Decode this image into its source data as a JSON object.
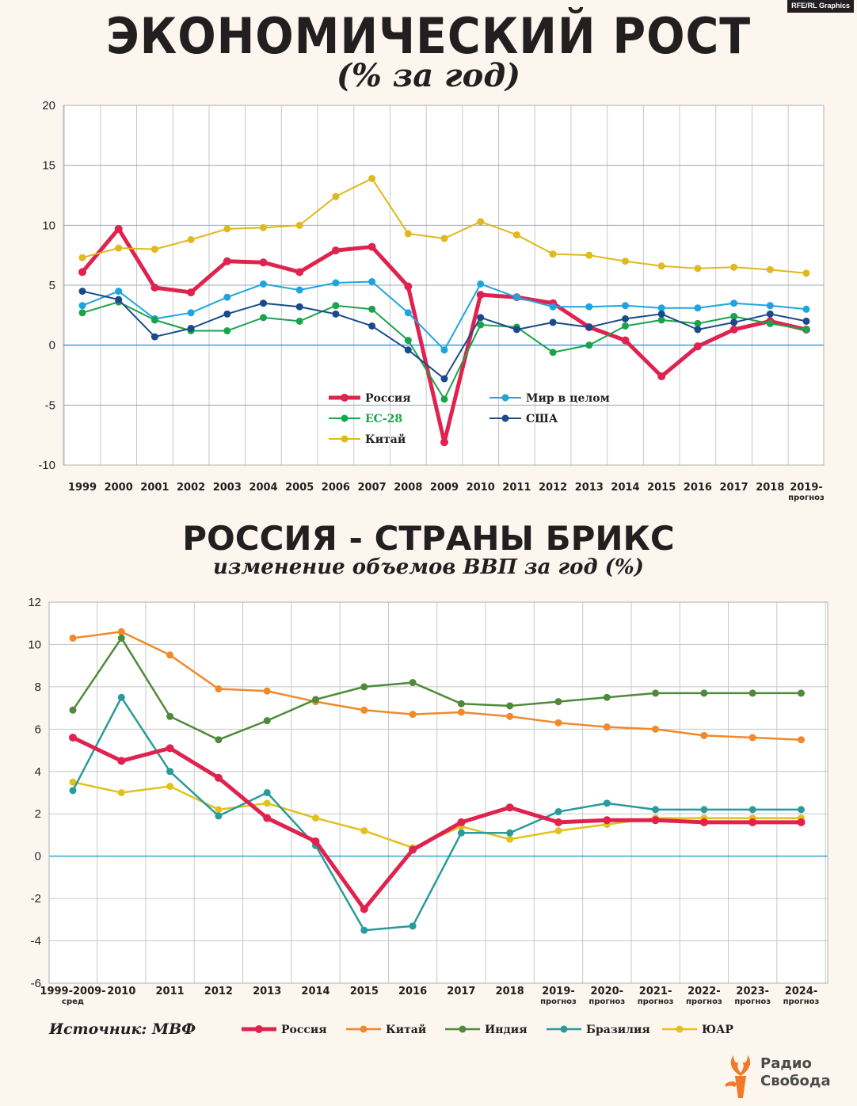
{
  "credit": "RFE/RL Graphics",
  "title1": "ЭКОНОМИЧЕСКИЙ РОСТ",
  "subtitle1": "(% за год)",
  "title2": "РОССИЯ - СТРАНЫ БРИКС",
  "subtitle2": "изменение объемов ВВП за год (%)",
  "source": "Источник: МВФ",
  "logo": {
    "line1": "Радио",
    "line2": "Свобода"
  },
  "chart_data": [
    {
      "type": "line",
      "title": "ЭКОНОМИЧЕСКИЙ РОСТ",
      "subtitle": "(% за год)",
      "categories": [
        "1999",
        "2000",
        "2001",
        "2002",
        "2003",
        "2004",
        "2005",
        "2006",
        "2007",
        "2008",
        "2009",
        "2010",
        "2011",
        "2012",
        "2013",
        "2014",
        "2015",
        "2016",
        "2017",
        "2018",
        "2019-\nпрогноз"
      ],
      "ylim": [
        -10,
        20
      ],
      "yticks": [
        -10,
        -5,
        0,
        5,
        10,
        15,
        20
      ],
      "grid": true,
      "legend_position": "bottom-center (inside plot)",
      "series": [
        {
          "name": "Россия",
          "color": "#e0224e",
          "width": 5,
          "label_color": "#231f20",
          "values": [
            6.1,
            9.7,
            4.8,
            4.4,
            7.0,
            6.9,
            6.1,
            7.9,
            8.2,
            4.9,
            -8.1,
            4.2,
            4.0,
            3.5,
            1.5,
            0.4,
            -2.6,
            -0.1,
            1.3,
            2.0,
            1.3
          ]
        },
        {
          "name": "Мир в целом",
          "color": "#1ea5e0",
          "width": 2,
          "label_color": "#231f20",
          "values": [
            3.3,
            4.5,
            2.2,
            2.7,
            4.0,
            5.1,
            4.6,
            5.2,
            5.3,
            2.7,
            -0.4,
            5.1,
            4.0,
            3.2,
            3.2,
            3.3,
            3.1,
            3.1,
            3.5,
            3.3,
            3.0
          ]
        },
        {
          "name": "ЕС-28",
          "color": "#1ba34b",
          "width": 2,
          "label_color": "#1ba34b",
          "values": [
            2.7,
            3.6,
            2.1,
            1.2,
            1.2,
            2.3,
            2.0,
            3.3,
            3.0,
            0.4,
            -4.5,
            1.7,
            1.5,
            -0.6,
            0.0,
            1.6,
            2.1,
            1.8,
            2.4,
            1.8,
            1.3
          ]
        },
        {
          "name": "США",
          "color": "#1a4a8c",
          "width": 2,
          "label_color": "#231f20",
          "values": [
            4.5,
            3.8,
            0.7,
            1.4,
            2.6,
            3.5,
            3.2,
            2.6,
            1.6,
            -0.4,
            -2.8,
            2.3,
            1.3,
            1.9,
            1.5,
            2.2,
            2.6,
            1.3,
            1.9,
            2.6,
            2.0
          ]
        },
        {
          "name": "Китай",
          "color": "#e0b81f",
          "width": 2,
          "label_color": "#231f20",
          "values": [
            7.3,
            8.1,
            8.0,
            8.8,
            9.7,
            9.8,
            10.0,
            12.4,
            13.9,
            9.3,
            8.9,
            10.3,
            9.2,
            7.6,
            7.5,
            7.0,
            6.6,
            6.4,
            6.5,
            6.3,
            6.0
          ]
        }
      ],
      "legend": [
        {
          "series": "Россия",
          "col": 0,
          "row": 0
        },
        {
          "series": "Мир в целом",
          "col": 1,
          "row": 0
        },
        {
          "series": "ЕС-28",
          "col": 0,
          "row": 1
        },
        {
          "series": "США",
          "col": 1,
          "row": 1
        },
        {
          "series": "Китай",
          "col": 0,
          "row": 2
        }
      ]
    },
    {
      "type": "line",
      "title": "РОССИЯ - СТРАНЫ БРИКС",
      "subtitle": "изменение объемов ВВП за год (%)",
      "categories": [
        "1999-2009-\nсред",
        "2010",
        "2011",
        "2012",
        "2013",
        "2014",
        "2015",
        "2016",
        "2017",
        "2018",
        "2019-\nпрогноз",
        "2020-\nпрогноз",
        "2021-\nпрогноз",
        "2022-\nпрогноз",
        "2023-\nпрогноз",
        "2024-\nпрогноз"
      ],
      "ylim": [
        -6,
        12
      ],
      "yticks": [
        -6,
        -4,
        -2,
        0,
        2,
        4,
        6,
        8,
        10,
        12
      ],
      "grid": true,
      "legend_position": "bottom (below plot)",
      "series": [
        {
          "name": "Китай",
          "color": "#f0892a",
          "width": 2.5,
          "values": [
            10.3,
            10.6,
            9.5,
            7.9,
            7.8,
            7.3,
            6.9,
            6.7,
            6.8,
            6.6,
            6.3,
            6.1,
            6.0,
            5.7,
            5.6,
            5.5
          ]
        },
        {
          "name": "Индия",
          "color": "#4f8a3a",
          "width": 2.5,
          "values": [
            6.9,
            10.3,
            6.6,
            5.5,
            6.4,
            7.4,
            8.0,
            8.2,
            7.2,
            7.1,
            7.3,
            7.5,
            7.7,
            7.7,
            7.7,
            7.7
          ]
        },
        {
          "name": "ЮАР",
          "color": "#e0c21f",
          "width": 2.5,
          "values": [
            3.5,
            3.0,
            3.3,
            2.2,
            2.5,
            1.8,
            1.2,
            0.4,
            1.4,
            0.8,
            1.2,
            1.5,
            1.8,
            1.8,
            1.8,
            1.8
          ]
        },
        {
          "name": "Бразилия",
          "color": "#2a9a9a",
          "width": 2.5,
          "values": [
            3.1,
            7.5,
            4.0,
            1.9,
            3.0,
            0.5,
            -3.5,
            -3.3,
            1.1,
            1.1,
            2.1,
            2.5,
            2.2,
            2.2,
            2.2,
            2.2
          ]
        },
        {
          "name": "Россия",
          "color": "#e0224e",
          "width": 5,
          "values": [
            5.6,
            4.5,
            5.1,
            3.7,
            1.8,
            0.7,
            -2.5,
            0.3,
            1.6,
            2.3,
            1.6,
            1.7,
            1.7,
            1.6,
            1.6,
            1.6
          ]
        }
      ],
      "legend": [
        {
          "series": "Россия"
        },
        {
          "series": "Китай"
        },
        {
          "series": "Индия"
        },
        {
          "series": "Бразилия"
        },
        {
          "series": "ЮАР"
        }
      ]
    }
  ]
}
